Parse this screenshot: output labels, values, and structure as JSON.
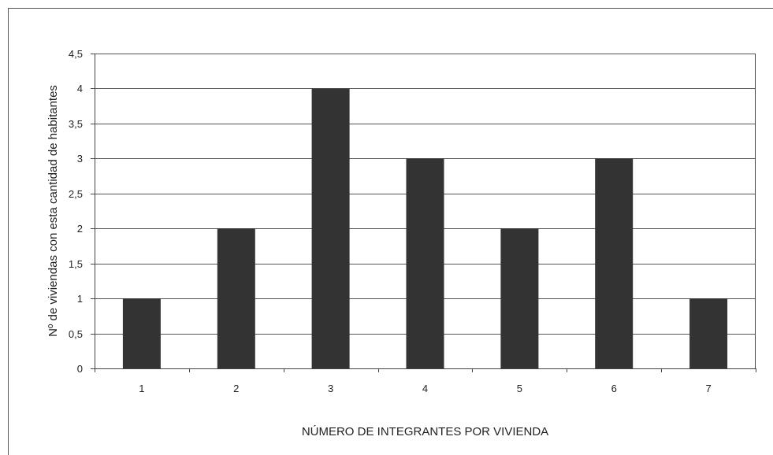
{
  "chart_data": {
    "type": "bar",
    "categories": [
      "1",
      "2",
      "3",
      "4",
      "5",
      "6",
      "7"
    ],
    "values": [
      1,
      2,
      4,
      3,
      2,
      3,
      1
    ],
    "title": "",
    "xlabel": "NÚMERO DE INTEGRANTES POR VIVIENDA",
    "ylabel": "Nº de viviendas con esta cantidad de habitantes",
    "ylim": [
      0,
      4.5
    ],
    "ytick_values": [
      0,
      0.5,
      1,
      1.5,
      2,
      2.5,
      3,
      3.5,
      4,
      4.5
    ],
    "ytick_labels": [
      "0",
      "0,5",
      "1",
      "1,5",
      "2",
      "2,5",
      "3",
      "3,5",
      "4",
      "4,5"
    ],
    "grid": true,
    "legend": "none",
    "colors": {
      "bar": "#333333",
      "grid": "#555555",
      "axis": "#444444",
      "text": "#222222"
    }
  }
}
